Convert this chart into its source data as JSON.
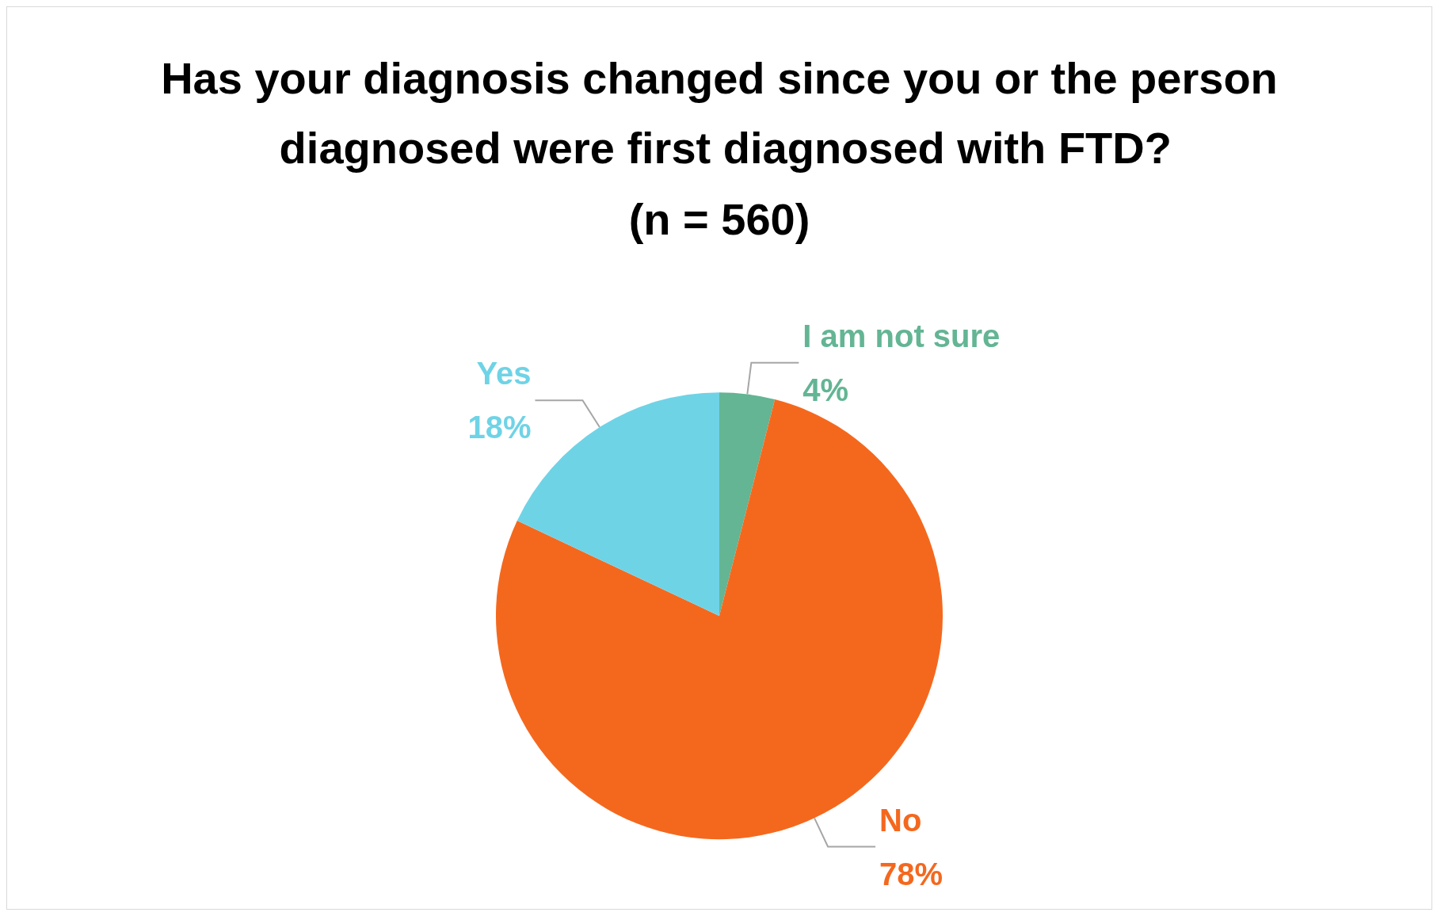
{
  "chart_data": {
    "type": "pie",
    "title": "Has your diagnosis changed since you or the person diagnosed were first diagnosed with FTD?",
    "subtitle": "(n = 560)",
    "categories": [
      "I am not sure",
      "No",
      "Yes"
    ],
    "values": [
      4,
      78,
      18
    ],
    "colors": [
      "#63b594",
      "#f4681e",
      "#6fd3e6"
    ],
    "value_labels": [
      "4%",
      "78%",
      "18%"
    ],
    "legend": false
  }
}
